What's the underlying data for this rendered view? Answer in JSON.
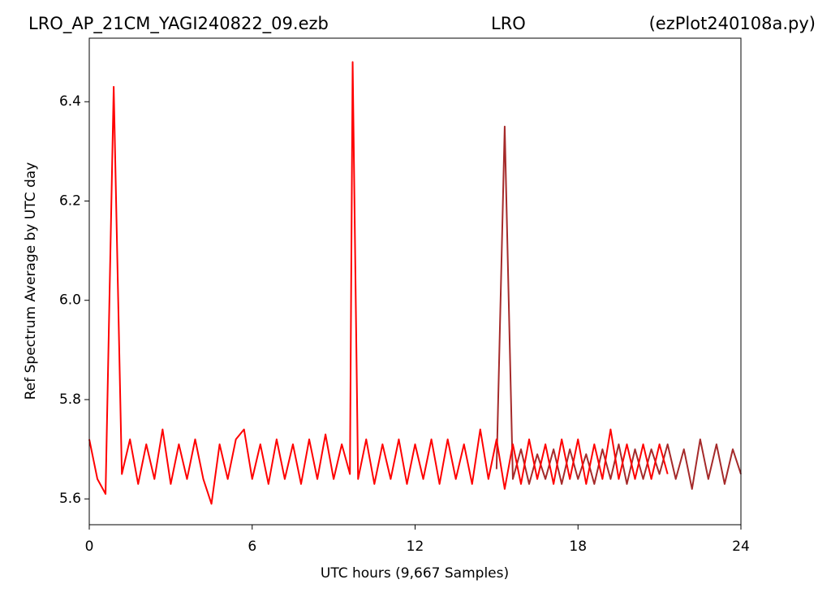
{
  "chart_data": {
    "type": "line",
    "title_left": "LRO_AP_21CM_YAGI240822_09.ezb",
    "title_center": "LRO",
    "title_right": "(ezPlot240108a.py)",
    "xlabel": "UTC hours  (9,667 Samples)",
    "ylabel": "Ref Spectrum Average by UTC day",
    "xlim": [
      0,
      24
    ],
    "xticks": [
      0,
      6,
      12,
      18,
      24
    ],
    "ylim": [
      5.548,
      6.528
    ],
    "yticks": [
      5.6,
      5.8,
      {
        "value": 6,
        "label": "6.0"
      },
      6.2,
      6.4
    ],
    "series": [
      {
        "color": "#a52a2a",
        "x": [
          15,
          15.3,
          15.6,
          15.9,
          16.2,
          16.5,
          16.8,
          17.1,
          17.4,
          17.7,
          18,
          18.3,
          18.6,
          18.9,
          19.2,
          19.5,
          19.8,
          20.1,
          20.4,
          20.7,
          21,
          21.3,
          21.6,
          21.9,
          22.2,
          22.5,
          22.8,
          23.1,
          23.4,
          23.7,
          24
        ],
        "values": [
          5.66,
          6.35,
          5.64,
          5.7,
          5.63,
          5.69,
          5.64,
          5.7,
          5.63,
          5.7,
          5.64,
          5.69,
          5.63,
          5.7,
          5.64,
          5.71,
          5.63,
          5.7,
          5.64,
          5.7,
          5.65,
          5.71,
          5.64,
          5.7,
          5.62,
          5.72,
          5.64,
          5.71,
          5.63,
          5.7,
          5.65
        ]
      },
      {
        "color": "#ff0000",
        "x": [
          0,
          0.3,
          0.6,
          0.9,
          1.2,
          1.5,
          1.8,
          2.1,
          2.4,
          2.7,
          3,
          3.3,
          3.6,
          3.9,
          4.2,
          4.5,
          4.8,
          5.1,
          5.4,
          5.7,
          6,
          6.3,
          6.6,
          6.9,
          7.2,
          7.5,
          7.8,
          8.1,
          8.4,
          8.7,
          9,
          9.3,
          9.6,
          9.7,
          9.9,
          10.2,
          10.5,
          10.8,
          11.1,
          11.4,
          11.7,
          12,
          12.3,
          12.6,
          12.9,
          13.2,
          13.5,
          13.8,
          14.1,
          14.4,
          14.7,
          15,
          15.3,
          15.6,
          15.9,
          16.2,
          16.5,
          16.8,
          17.1,
          17.4,
          17.7,
          18,
          18.3,
          18.6,
          18.9,
          19.2,
          19.5,
          19.8,
          20.1,
          20.4,
          20.7,
          21,
          21.3
        ],
        "values": [
          5.72,
          5.64,
          5.61,
          6.43,
          5.65,
          5.72,
          5.63,
          5.71,
          5.64,
          5.74,
          5.63,
          5.71,
          5.64,
          5.72,
          5.64,
          5.59,
          5.71,
          5.64,
          5.72,
          5.74,
          5.64,
          5.71,
          5.63,
          5.72,
          5.64,
          5.71,
          5.63,
          5.72,
          5.64,
          5.73,
          5.64,
          5.71,
          5.65,
          6.48,
          5.64,
          5.72,
          5.63,
          5.71,
          5.64,
          5.72,
          5.63,
          5.71,
          5.64,
          5.72,
          5.63,
          5.72,
          5.64,
          5.71,
          5.63,
          5.74,
          5.64,
          5.72,
          5.62,
          5.71,
          5.63,
          5.72,
          5.64,
          5.71,
          5.63,
          5.72,
          5.64,
          5.72,
          5.63,
          5.71,
          5.64,
          5.74,
          5.64,
          5.71,
          5.64,
          5.71,
          5.64,
          5.71,
          5.65
        ]
      }
    ]
  }
}
